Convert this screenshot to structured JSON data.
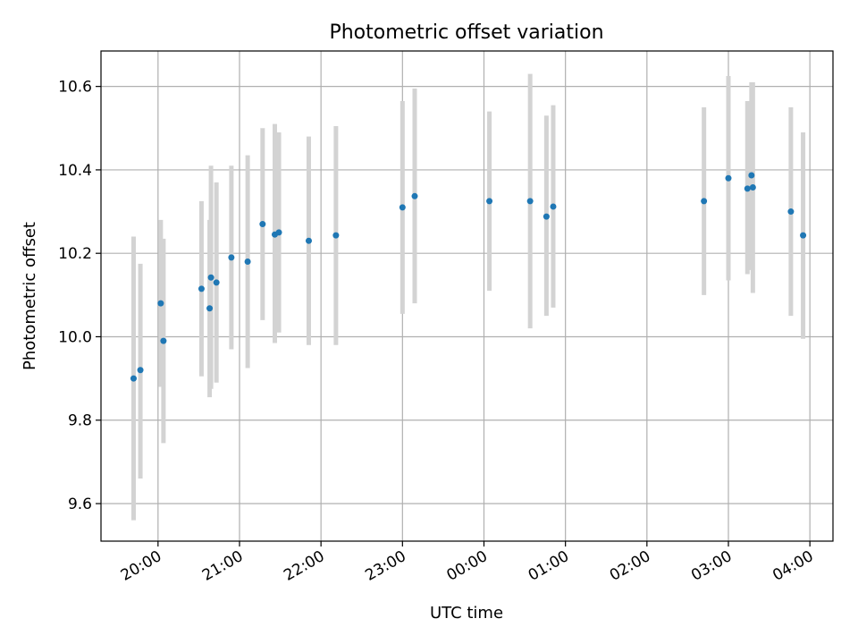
{
  "chart_data": {
    "type": "scatter",
    "title": "Photometric offset variation",
    "xlabel": "UTC time",
    "ylabel": "Photometric offset",
    "x_range": [
      "19:18",
      "04:17"
    ],
    "ylim": [
      9.51,
      10.685
    ],
    "x_ticks": [
      "20:00",
      "21:00",
      "22:00",
      "23:00",
      "00:00",
      "01:00",
      "02:00",
      "03:00",
      "04:00"
    ],
    "y_ticks": [
      9.6,
      9.8,
      10.0,
      10.2,
      10.4,
      10.6
    ],
    "grid": true,
    "colors": {
      "point": "#1f77b4",
      "errorbar": "#d3d3d3",
      "grid": "#b0b0b0"
    },
    "points": [
      {
        "x": "19:42",
        "y": 9.9,
        "err_low": 9.56,
        "err_high": 10.24
      },
      {
        "x": "19:47",
        "y": 9.92,
        "err_low": 9.66,
        "err_high": 10.175
      },
      {
        "x": "20:02",
        "y": 10.08,
        "err_low": 9.88,
        "err_high": 10.28
      },
      {
        "x": "20:04",
        "y": 9.99,
        "err_low": 9.745,
        "err_high": 10.235
      },
      {
        "x": "20:32",
        "y": 10.115,
        "err_low": 9.905,
        "err_high": 10.325
      },
      {
        "x": "20:38",
        "y": 10.068,
        "err_low": 9.855,
        "err_high": 10.28
      },
      {
        "x": "20:39",
        "y": 10.142,
        "err_low": 9.875,
        "err_high": 10.41
      },
      {
        "x": "20:43",
        "y": 10.13,
        "err_low": 9.89,
        "err_high": 10.37
      },
      {
        "x": "20:54",
        "y": 10.19,
        "err_low": 9.97,
        "err_high": 10.41
      },
      {
        "x": "21:06",
        "y": 10.18,
        "err_low": 9.925,
        "err_high": 10.435
      },
      {
        "x": "21:17",
        "y": 10.27,
        "err_low": 10.04,
        "err_high": 10.5
      },
      {
        "x": "21:26",
        "y": 10.245,
        "err_low": 9.985,
        "err_high": 10.51
      },
      {
        "x": "21:29",
        "y": 10.25,
        "err_low": 10.01,
        "err_high": 10.49
      },
      {
        "x": "21:51",
        "y": 10.23,
        "err_low": 9.98,
        "err_high": 10.48
      },
      {
        "x": "22:11",
        "y": 10.243,
        "err_low": 9.98,
        "err_high": 10.505
      },
      {
        "x": "23:00",
        "y": 10.31,
        "err_low": 10.055,
        "err_high": 10.565
      },
      {
        "x": "23:09",
        "y": 10.337,
        "err_low": 10.08,
        "err_high": 10.595
      },
      {
        "x": "00:04",
        "y": 10.325,
        "err_low": 10.11,
        "err_high": 10.54
      },
      {
        "x": "00:34",
        "y": 10.325,
        "err_low": 10.02,
        "err_high": 10.63
      },
      {
        "x": "00:46",
        "y": 10.288,
        "err_low": 10.05,
        "err_high": 10.53
      },
      {
        "x": "00:51",
        "y": 10.312,
        "err_low": 10.07,
        "err_high": 10.555
      },
      {
        "x": "02:42",
        "y": 10.325,
        "err_low": 10.1,
        "err_high": 10.55
      },
      {
        "x": "03:00",
        "y": 10.38,
        "err_low": 10.135,
        "err_high": 10.625
      },
      {
        "x": "03:14",
        "y": 10.355,
        "err_low": 10.15,
        "err_high": 10.565
      },
      {
        "x": "03:17",
        "y": 10.387,
        "err_low": 10.16,
        "err_high": 10.61
      },
      {
        "x": "03:18",
        "y": 10.358,
        "err_low": 10.105,
        "err_high": 10.61
      },
      {
        "x": "03:46",
        "y": 10.3,
        "err_low": 10.05,
        "err_high": 10.55
      },
      {
        "x": "03:55",
        "y": 10.243,
        "err_low": 9.995,
        "err_high": 10.49
      }
    ]
  }
}
